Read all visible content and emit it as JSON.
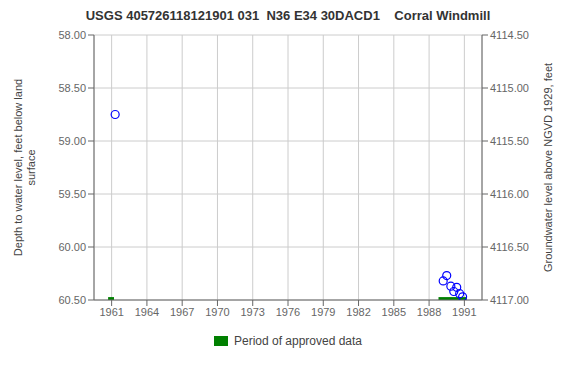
{
  "chart_data": {
    "type": "scatter",
    "title": "USGS 405726118121901 031  N36 E34 30DACD1    Corral Windmill",
    "x": [
      1961.3,
      1989.2,
      1989.5,
      1989.85,
      1990.1,
      1990.35,
      1990.6,
      1990.85
    ],
    "values": [
      58.75,
      60.32,
      60.27,
      60.37,
      60.42,
      60.38,
      60.44,
      60.47
    ],
    "color": "#0000ff",
    "marker": "open_circle",
    "xlim": [
      1959.5,
      1992.5
    ],
    "xticks": [
      1961,
      1964,
      1967,
      1970,
      1973,
      1976,
      1979,
      1982,
      1985,
      1988,
      1991
    ],
    "ylim": [
      60.5,
      58.0
    ],
    "yticks": [
      {
        "value": 58.0,
        "label": "58.00"
      },
      {
        "value": 58.5,
        "label": "58.50"
      },
      {
        "value": 59.0,
        "label": "59.00"
      },
      {
        "value": 59.5,
        "label": "59.50"
      },
      {
        "value": 60.0,
        "label": "60.00"
      },
      {
        "value": 60.5,
        "label": "60.50"
      }
    ],
    "y2lim": [
      4117.0,
      4114.5
    ],
    "y2ticks": [
      {
        "value": 4117.0,
        "label": "4117.00"
      },
      {
        "value": 4116.5,
        "label": "4116.50"
      },
      {
        "value": 4116.0,
        "label": "4116.00"
      },
      {
        "value": 4115.5,
        "label": "4115.50"
      },
      {
        "value": 4115.0,
        "label": "4115.00"
      },
      {
        "value": 4114.5,
        "label": "4114.50"
      }
    ],
    "ylabel": "Depth to water level, feet below land\n surface",
    "y2label": "Groundwater level above NGVD 1929, feet",
    "grid": true,
    "legend": "bottom",
    "series": [
      {
        "name": "Period of approved data",
        "type": "bar",
        "color": "#008000",
        "x_start": [
          1960.7,
          1988.8
        ],
        "x_end": [
          1961.2,
          1991.2
        ]
      }
    ]
  }
}
